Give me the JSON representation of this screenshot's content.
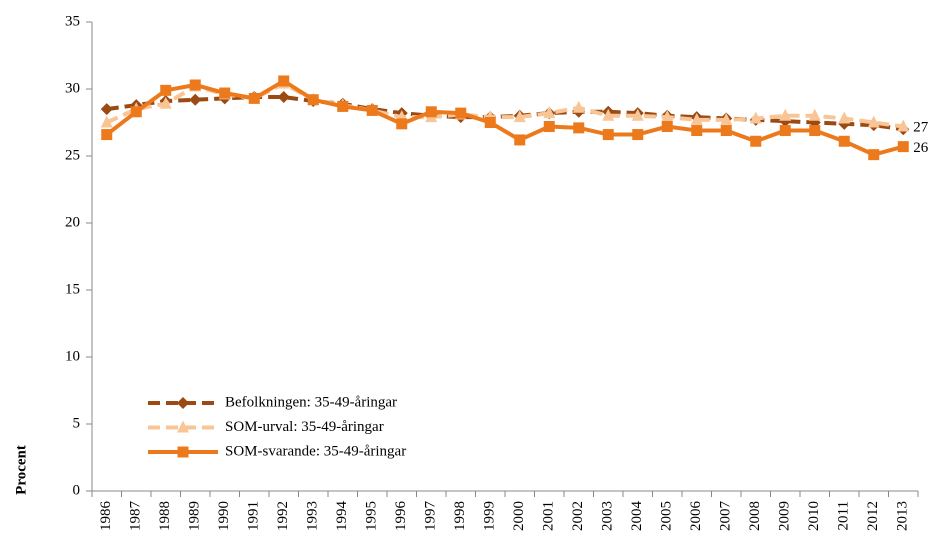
{
  "chart_data": {
    "type": "line",
    "y_label": "Procent",
    "categories": [
      "1986",
      "1987",
      "1988",
      "1989",
      "1990",
      "1991",
      "1992",
      "1993",
      "1994",
      "1995",
      "1996",
      "1997",
      "1998",
      "1999",
      "2000",
      "2001",
      "2002",
      "2003",
      "2004",
      "2005",
      "2006",
      "2007",
      "2008",
      "2009",
      "2010",
      "2011",
      "2012",
      "2013"
    ],
    "ylim": [
      0,
      35
    ],
    "yticks": [
      0,
      5,
      10,
      15,
      20,
      25,
      30,
      35
    ],
    "grid": false,
    "legend": "lower left",
    "series": [
      {
        "name": "Befolkningen: 35-49-åringar",
        "color": "#9a4a12",
        "line_style": "dashed",
        "marker": "diamond",
        "end_label": "27",
        "values": [
          28.5,
          28.8,
          29.1,
          29.2,
          29.3,
          29.4,
          29.4,
          29.1,
          28.9,
          28.5,
          28.2,
          28.0,
          27.9,
          27.9,
          28.0,
          28.2,
          28.3,
          28.3,
          28.2,
          28.0,
          27.9,
          27.8,
          27.7,
          27.6,
          27.5,
          27.4,
          27.3,
          27.0
        ]
      },
      {
        "name": "SOM-urval: 35-49-åringar",
        "color": "#f9c596",
        "line_style": "dashed",
        "marker": "triangle",
        "values": [
          27.5,
          28.5,
          28.9,
          30.2,
          29.6,
          29.3,
          30.4,
          29.2,
          28.8,
          28.4,
          27.9,
          27.9,
          28.1,
          27.9,
          27.9,
          28.2,
          28.6,
          28.0,
          28.0,
          27.9,
          27.7,
          27.7,
          27.8,
          28.0,
          28.0,
          27.8,
          27.5,
          27.2
        ]
      },
      {
        "name": "SOM-svarande: 35-49-åringar",
        "color": "#ec7a1c",
        "line_style": "solid",
        "marker": "square",
        "end_label": "26",
        "values": [
          26.6,
          28.3,
          29.9,
          30.3,
          29.7,
          29.3,
          30.6,
          29.2,
          28.7,
          28.4,
          27.4,
          28.3,
          28.2,
          27.5,
          26.2,
          27.2,
          27.1,
          26.6,
          26.6,
          27.2,
          26.9,
          26.9,
          26.1,
          26.9,
          26.9,
          26.1,
          25.1,
          25.7
        ]
      }
    ]
  }
}
